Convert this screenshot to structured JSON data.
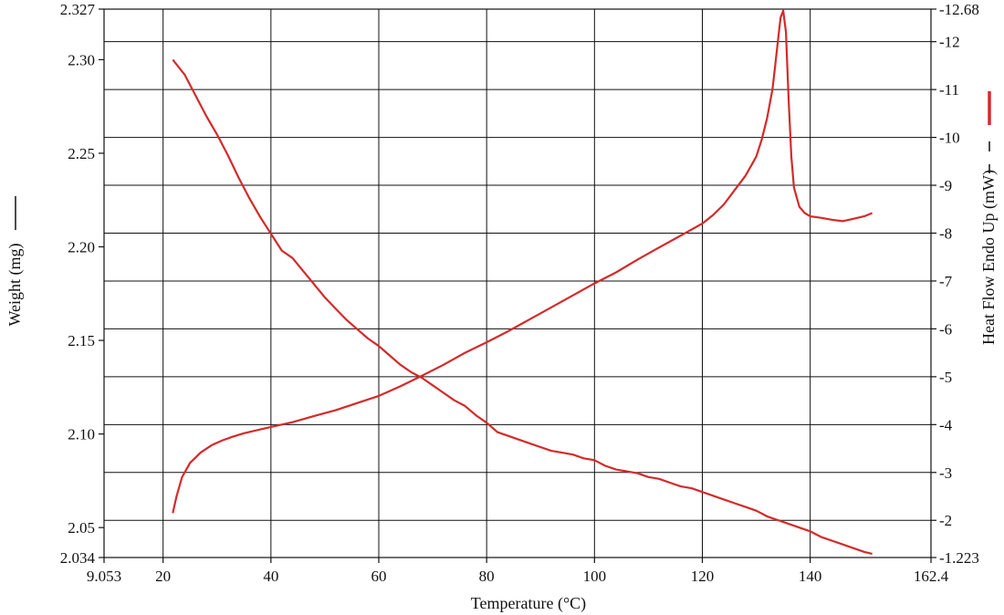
{
  "chart_data": {
    "type": "line",
    "xlabel": "Temperature (°C)",
    "ylabel": "Weight (mg)",
    "y2label": "Heat Flow Endo Up (mW)",
    "xlim": [
      9.053,
      162.4
    ],
    "ylim": [
      2.034,
      2.327
    ],
    "y2lim": [
      1.223,
      12.68
    ],
    "x_ticks": [
      "9.053",
      "20",
      "40",
      "60",
      "80",
      "100",
      "120",
      "140",
      "162.4"
    ],
    "y_ticks": [
      "2.034",
      "2.05",
      "2.10",
      "2.15",
      "2.20",
      "2.25",
      "2.30",
      "2.327"
    ],
    "y2_ticks": [
      "1.223",
      "2",
      "3",
      "4",
      "5",
      "6",
      "7",
      "8",
      "9",
      "10",
      "11",
      "12",
      "12.68"
    ],
    "grid": true,
    "line_color": "#d42a2a",
    "series": [
      {
        "axis": "left",
        "x": [
          21.8,
          24,
          26,
          28,
          30,
          32,
          34,
          36,
          38,
          40,
          42,
          44,
          46,
          48,
          50,
          52,
          54,
          56,
          58,
          60,
          62,
          64,
          66,
          68,
          70,
          72,
          74,
          76,
          78,
          80,
          82,
          84,
          86,
          88,
          90,
          92,
          94,
          96,
          98,
          100,
          102,
          104,
          106,
          108,
          110,
          112,
          114,
          116,
          118,
          120,
          122,
          124,
          126,
          128,
          130,
          132,
          134,
          136,
          138,
          140,
          142,
          144,
          146,
          148,
          150,
          151.5
        ],
        "values": [
          2.3,
          2.292,
          2.281,
          2.27,
          2.26,
          2.249,
          2.237,
          2.226,
          2.216,
          2.207,
          2.198,
          2.194,
          2.187,
          2.18,
          2.173,
          2.167,
          2.161,
          2.156,
          2.151,
          2.147,
          2.142,
          2.137,
          2.133,
          2.13,
          2.126,
          2.122,
          2.118,
          2.115,
          2.11,
          2.106,
          2.101,
          2.099,
          2.097,
          2.095,
          2.093,
          2.091,
          2.09,
          2.089,
          2.087,
          2.086,
          2.083,
          2.081,
          2.08,
          2.079,
          2.077,
          2.076,
          2.074,
          2.072,
          2.071,
          2.069,
          2.067,
          2.065,
          2.063,
          2.061,
          2.059,
          2.056,
          2.054,
          2.052,
          2.05,
          2.048,
          2.045,
          2.043,
          2.041,
          2.039,
          2.037,
          2.036
        ]
      },
      {
        "axis": "right",
        "x": [
          21.8,
          22.5,
          23.5,
          25,
          27,
          29,
          31,
          33,
          35,
          37,
          40,
          44,
          48,
          52,
          56,
          60,
          64,
          68,
          72,
          76,
          80,
          84,
          88,
          92,
          96,
          100,
          104,
          108,
          112,
          116,
          120,
          122,
          124,
          126,
          128,
          130,
          131,
          132,
          133,
          133.5,
          134,
          134.5,
          135,
          135.5,
          136,
          136.5,
          137,
          138,
          139,
          140,
          142,
          144,
          146,
          148,
          150,
          151.5
        ],
        "values": [
          2.15,
          2.5,
          2.9,
          3.2,
          3.42,
          3.57,
          3.67,
          3.75,
          3.82,
          3.87,
          3.95,
          4.05,
          4.18,
          4.3,
          4.45,
          4.6,
          4.8,
          5.02,
          5.25,
          5.5,
          5.72,
          5.95,
          6.2,
          6.45,
          6.7,
          6.95,
          7.18,
          7.45,
          7.7,
          7.95,
          8.2,
          8.38,
          8.6,
          8.9,
          9.2,
          9.6,
          9.95,
          10.4,
          11.0,
          11.5,
          12.0,
          12.5,
          12.65,
          12.2,
          10.8,
          9.6,
          8.95,
          8.55,
          8.42,
          8.35,
          8.32,
          8.28,
          8.25,
          8.3,
          8.35,
          8.42
        ]
      }
    ]
  }
}
